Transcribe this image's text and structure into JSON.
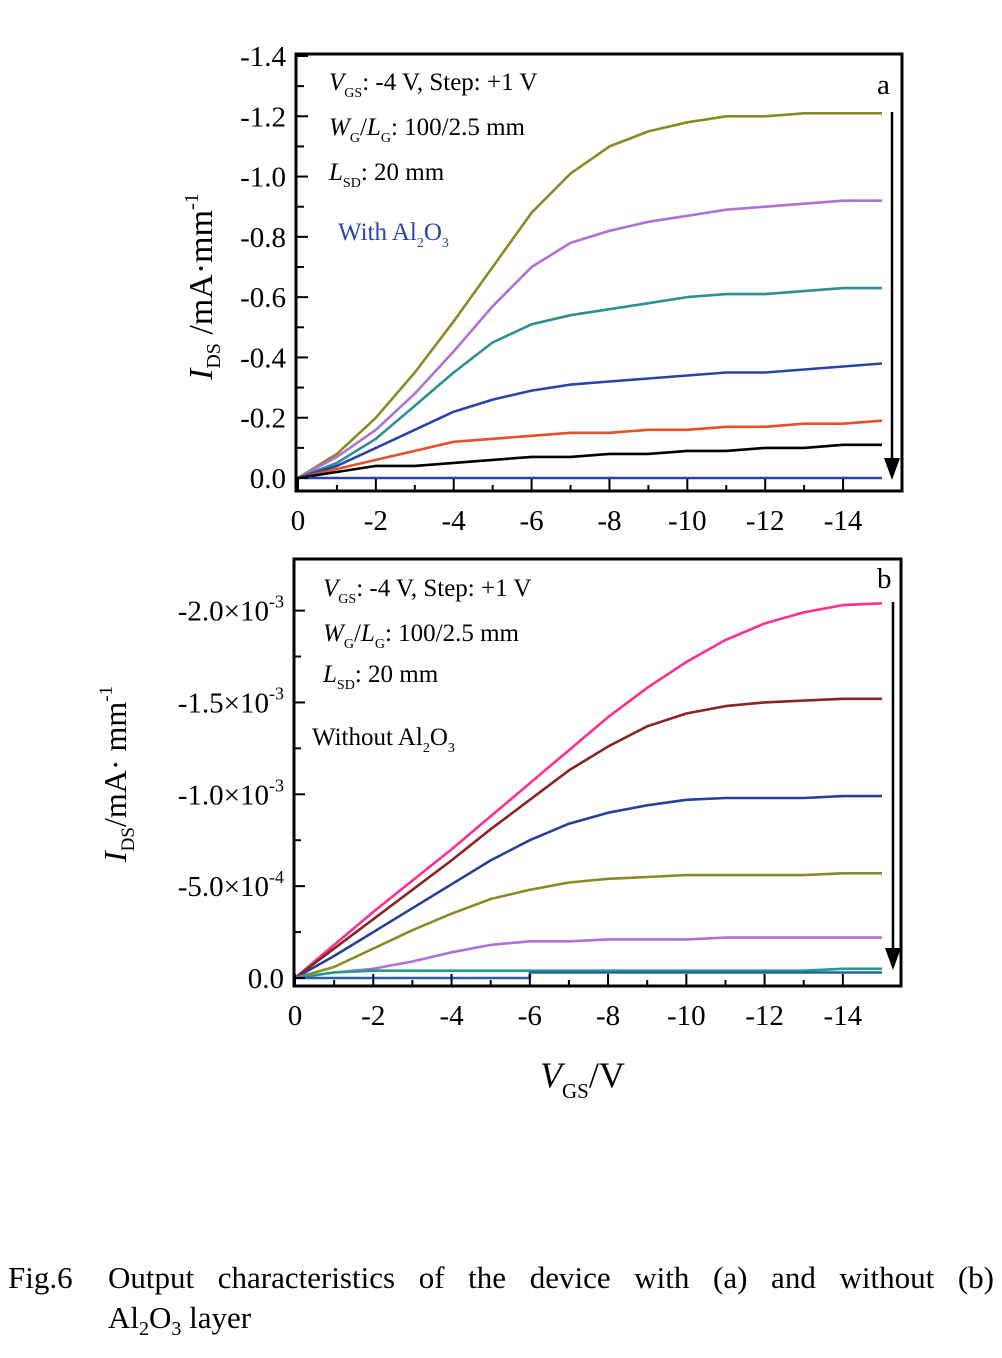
{
  "chart_data": [
    {
      "type": "line",
      "panel_label": "a",
      "ylabel": {
        "main": "I",
        "sub": "DS",
        "rest": " /mA·mm",
        "sup": "-1"
      },
      "xlim": [
        0,
        -15
      ],
      "ylim": [
        0,
        -1.4
      ],
      "xticks": [
        0,
        -2,
        -4,
        -6,
        -8,
        -10,
        -12,
        -14
      ],
      "xtick_labels": [
        "0",
        "-2",
        "-4",
        "-6",
        "-8",
        "-10",
        "-12",
        "-14"
      ],
      "yticks": [
        0,
        -0.2,
        -0.4,
        -0.6,
        -0.8,
        -1.0,
        -1.2,
        -1.4
      ],
      "ytick_labels": [
        "0.0",
        "-0.2",
        "-0.4",
        "-0.6",
        "-0.8",
        "-1.0",
        "-1.2",
        "-1.4"
      ],
      "annotations": {
        "vgs": {
          "symbol": "V",
          "sub": "GS",
          "text": ": -4 V, Step: +1 V"
        },
        "wl": {
          "symbol1": "W",
          "sub1": "G",
          "slash": "/",
          "symbol2": "L",
          "sub2": "G",
          "text": ": 100/2.5 mm"
        },
        "lsd": {
          "symbol": "L",
          "sub": "SD",
          "text": ": 20 mm"
        },
        "condition": {
          "text": "With Al",
          "sub1": "2",
          "mid": "O",
          "sub2": "3"
        }
      },
      "arrow": "down along right edge",
      "series": [
        {
          "color": "#8c8a24",
          "x": [
            0,
            -1,
            -2,
            -3,
            -4,
            -5,
            -6,
            -7,
            -8,
            -9,
            -10,
            -11,
            -12,
            -13,
            -14,
            -15
          ],
          "y": [
            0,
            -0.08,
            -0.2,
            -0.35,
            -0.52,
            -0.7,
            -0.88,
            -1.01,
            -1.1,
            -1.15,
            -1.18,
            -1.2,
            -1.2,
            -1.21,
            -1.21,
            -1.21
          ]
        },
        {
          "color": "#b36fd6",
          "x": [
            0,
            -1,
            -2,
            -3,
            -4,
            -5,
            -6,
            -7,
            -8,
            -9,
            -10,
            -11,
            -12,
            -13,
            -14,
            -15
          ],
          "y": [
            0,
            -0.07,
            -0.16,
            -0.28,
            -0.42,
            -0.57,
            -0.7,
            -0.78,
            -0.82,
            -0.85,
            -0.87,
            -0.89,
            -0.9,
            -0.91,
            -0.92,
            -0.92
          ]
        },
        {
          "color": "#2e9090",
          "x": [
            0,
            -1,
            -2,
            -3,
            -4,
            -5,
            -6,
            -7,
            -8,
            -9,
            -10,
            -11,
            -12,
            -13,
            -14,
            -15
          ],
          "y": [
            0,
            -0.05,
            -0.13,
            -0.24,
            -0.35,
            -0.45,
            -0.51,
            -0.54,
            -0.56,
            -0.58,
            -0.6,
            -0.61,
            -0.61,
            -0.62,
            -0.63,
            -0.63
          ]
        },
        {
          "color": "#2b44a8",
          "x": [
            0,
            -1,
            -2,
            -3,
            -4,
            -5,
            -6,
            -7,
            -8,
            -9,
            -10,
            -11,
            -12,
            -13,
            -14,
            -15
          ],
          "y": [
            0,
            -0.04,
            -0.1,
            -0.16,
            -0.22,
            -0.26,
            -0.29,
            -0.31,
            -0.32,
            -0.33,
            -0.34,
            -0.35,
            -0.35,
            -0.36,
            -0.37,
            -0.38
          ]
        },
        {
          "color": "#e6502a",
          "x": [
            0,
            -1,
            -2,
            -3,
            -4,
            -5,
            -6,
            -7,
            -8,
            -9,
            -10,
            -11,
            -12,
            -13,
            -14,
            -15
          ],
          "y": [
            0,
            -0.03,
            -0.06,
            -0.09,
            -0.12,
            -0.13,
            -0.14,
            -0.15,
            -0.15,
            -0.16,
            -0.16,
            -0.17,
            -0.17,
            -0.18,
            -0.18,
            -0.19
          ]
        },
        {
          "color": "#000000",
          "x": [
            0,
            -1,
            -2,
            -3,
            -4,
            -5,
            -6,
            -7,
            -8,
            -9,
            -10,
            -11,
            -12,
            -13,
            -14,
            -15
          ],
          "y": [
            0,
            -0.02,
            -0.04,
            -0.04,
            -0.05,
            -0.06,
            -0.07,
            -0.07,
            -0.08,
            -0.08,
            -0.09,
            -0.09,
            -0.1,
            -0.1,
            -0.11,
            -0.11
          ]
        },
        {
          "color": "#2b44a8",
          "x": [
            0,
            -15
          ],
          "y": [
            0,
            0
          ]
        }
      ]
    },
    {
      "type": "line",
      "panel_label": "b",
      "ylabel": {
        "main": "I",
        "sub": "DS",
        "rest": "/mA· mm",
        "sup": "-1"
      },
      "xlabel": {
        "main": "V",
        "sub": "GS",
        "rest": "/V"
      },
      "xlim": [
        0,
        -15
      ],
      "ylim": [
        0,
        -0.00227
      ],
      "xticks": [
        0,
        -2,
        -4,
        -6,
        -8,
        -10,
        -12,
        -14
      ],
      "xtick_labels": [
        "0",
        "-2",
        "-4",
        "-6",
        "-8",
        "-10",
        "-12",
        "-14"
      ],
      "yticks": [
        0,
        -0.0005,
        -0.001,
        -0.0015,
        -0.002
      ],
      "ytick_labels": [
        {
          "mant": "0.0",
          "exp": ""
        },
        {
          "mant": "-5.0×10",
          "exp": "-4"
        },
        {
          "mant": "-1.0×10",
          "exp": "-3"
        },
        {
          "mant": "-1.5×10",
          "exp": "-3"
        },
        {
          "mant": "-2.0×10",
          "exp": "-3"
        }
      ],
      "annotations": {
        "vgs": {
          "symbol": "V",
          "sub": "GS",
          "text": ": -4 V, Step: +1 V"
        },
        "wl": {
          "symbol1": "W",
          "sub1": "G",
          "slash": "/",
          "symbol2": "L",
          "sub2": "G",
          "text": ": 100/2.5 mm"
        },
        "lsd": {
          "symbol": "L",
          "sub": "SD",
          "text": ": 20 mm"
        },
        "condition": {
          "text": "Without Al",
          "sub1": "2",
          "mid": "O",
          "sub2": "3"
        }
      },
      "arrow": "down along right edge",
      "series": [
        {
          "color": "#ff2f8f",
          "x": [
            0,
            -1,
            -2,
            -3,
            -4,
            -5,
            -6,
            -7,
            -8,
            -9,
            -10,
            -11,
            -12,
            -13,
            -14,
            -15
          ],
          "y": [
            0,
            -0.00018,
            -0.00036,
            -0.00053,
            -0.0007,
            -0.00088,
            -0.00106,
            -0.00124,
            -0.00142,
            -0.00158,
            -0.00172,
            -0.00184,
            -0.00193,
            -0.00199,
            -0.00203,
            -0.00204
          ]
        },
        {
          "color": "#8b2525",
          "x": [
            0,
            -1,
            -2,
            -3,
            -4,
            -5,
            -6,
            -7,
            -8,
            -9,
            -10,
            -11,
            -12,
            -13,
            -14,
            -15
          ],
          "y": [
            0,
            -0.00016,
            -0.00032,
            -0.00048,
            -0.00064,
            -0.00081,
            -0.00097,
            -0.00113,
            -0.00126,
            -0.00137,
            -0.00144,
            -0.00148,
            -0.0015,
            -0.00151,
            -0.00152,
            -0.00152
          ]
        },
        {
          "color": "#2a3f99",
          "x": [
            0,
            -1,
            -2,
            -3,
            -4,
            -5,
            -6,
            -7,
            -8,
            -9,
            -10,
            -11,
            -12,
            -13,
            -14,
            -15
          ],
          "y": [
            0,
            -0.00012,
            -0.00025,
            -0.00038,
            -0.00051,
            -0.00064,
            -0.00075,
            -0.00084,
            -0.0009,
            -0.00094,
            -0.00097,
            -0.00098,
            -0.00098,
            -0.00098,
            -0.00099,
            -0.00099
          ]
        },
        {
          "color": "#8c8a24",
          "x": [
            0,
            -1,
            -2,
            -3,
            -4,
            -5,
            -6,
            -7,
            -8,
            -9,
            -10,
            -11,
            -12,
            -13,
            -14,
            -15
          ],
          "y": [
            0,
            -6e-05,
            -0.00016,
            -0.00026,
            -0.00035,
            -0.00043,
            -0.00048,
            -0.00052,
            -0.00054,
            -0.00055,
            -0.00056,
            -0.00056,
            -0.00056,
            -0.00056,
            -0.00057,
            -0.00057
          ]
        },
        {
          "color": "#b36fd6",
          "x": [
            0,
            -1,
            -2,
            -3,
            -4,
            -5,
            -6,
            -7,
            -8,
            -9,
            -10,
            -11,
            -12,
            -13,
            -14,
            -15
          ],
          "y": [
            0,
            -3e-05,
            -5e-05,
            -9e-05,
            -0.00014,
            -0.00018,
            -0.0002,
            -0.0002,
            -0.00021,
            -0.00021,
            -0.00021,
            -0.00022,
            -0.00022,
            -0.00022,
            -0.00022,
            -0.00022
          ]
        },
        {
          "color": "#1f9e8a",
          "x": [
            0,
            -1,
            -2,
            -3,
            -4,
            -5,
            -6,
            -7,
            -8,
            -9,
            -10,
            -11,
            -12,
            -13,
            -14,
            -15
          ],
          "y": [
            0,
            -3e-05,
            -4e-05,
            -4e-05,
            -4e-05,
            -4e-05,
            -4e-05,
            -4e-05,
            -4e-05,
            -4e-05,
            -4e-05,
            -4e-05,
            -4e-05,
            -4e-05,
            -5e-05,
            -5e-05
          ]
        },
        {
          "color": "#2860a8",
          "x": [
            0,
            -6,
            -6,
            -15
          ],
          "y": [
            0,
            0,
            -3e-05,
            -3e-05
          ]
        }
      ]
    }
  ],
  "caption": {
    "number": "Fig.6",
    "text": "Output characteristics of the device with (a) and without (b)",
    "line2_a": "Al",
    "line2_sub1": "2",
    "line2_b": "O",
    "line2_sub2": "3",
    "line2_c": " layer"
  }
}
